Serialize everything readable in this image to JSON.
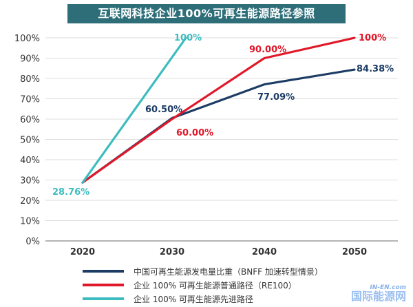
{
  "title": "互联网科技企业100%可再生能源路径参照",
  "chart_data": {
    "type": "line",
    "title": "互联网科技企业100%可再生能源路径参照",
    "categories": [
      "2020",
      "2030",
      "2040",
      "2050"
    ],
    "y_ticks": [
      "0%",
      "10%",
      "20%",
      "30%",
      "40%",
      "50%",
      "60%",
      "70%",
      "80%",
      "90%",
      "100%"
    ],
    "ylim": [
      0,
      100
    ],
    "grid": true,
    "series": [
      {
        "name": "中国可再生能源发电量比重（BNFF 加速转型情景）",
        "color": "#1c3c64",
        "values": [
          28.76,
          60.5,
          77.09,
          84.38
        ],
        "labels": [
          "",
          "60.50%",
          "77.09%",
          "84.38%"
        ]
      },
      {
        "name": "企业 100% 可再生能源普通路径（RE100）",
        "color": "#e0192a",
        "values": [
          28.76,
          60.0,
          90.0,
          100.0
        ],
        "labels": [
          "",
          "60.00%",
          "90.00%",
          "100%"
        ]
      },
      {
        "name": "企业 100% 可再生能源先进路径",
        "color": "#3cbcc0",
        "x_values": [
          2020,
          2031.5
        ],
        "values": [
          28.76,
          100.0
        ],
        "labels": [
          "28.76%",
          "100%"
        ]
      }
    ]
  },
  "watermark": {
    "line1": "IN-EN.com",
    "line2": "国际能源网"
  }
}
